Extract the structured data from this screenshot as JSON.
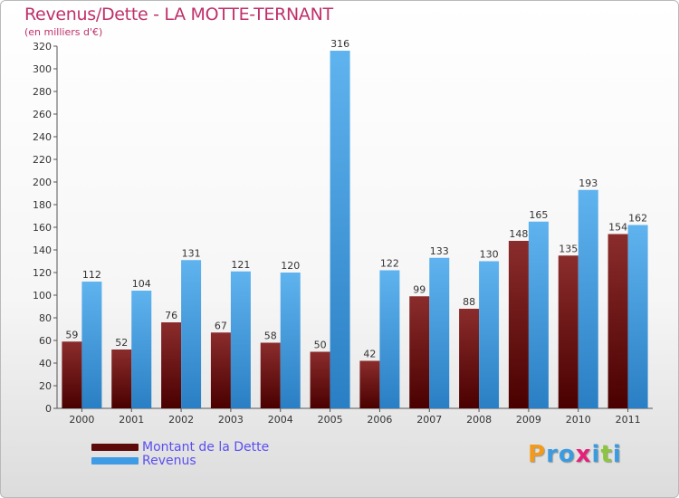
{
  "title": "Revenus/Dette - LA MOTTE-TERNANT",
  "subtitle": "(en milliers d'€)",
  "legend": {
    "dette": "Montant de la Dette",
    "revenus": "Revenus"
  },
  "logo": {
    "letters": [
      "P",
      "r",
      "o",
      "x",
      "i",
      "t",
      "i"
    ],
    "colors": [
      "#f29a1c",
      "#3a9be0",
      "#3a9be0",
      "#e6207a",
      "#3a9be0",
      "#8cc63f",
      "#3a9be0"
    ]
  },
  "colors": {
    "dette_top": "#8b2c2c",
    "dette_bottom": "#4a0000",
    "revenus_top": "#5fb3ee",
    "revenus_bottom": "#2a7fc4",
    "title": "#c0306a",
    "axis_text": "#333333"
  },
  "chart_data": {
    "type": "bar",
    "title": "Revenus/Dette - LA MOTTE-TERNANT",
    "ylabel": "(en milliers d'€)",
    "xlabel": "",
    "categories": [
      "2000",
      "2001",
      "2002",
      "2003",
      "2004",
      "2005",
      "2006",
      "2007",
      "2008",
      "2009",
      "2010",
      "2011"
    ],
    "series": [
      {
        "name": "Montant de la Dette",
        "values": [
          59,
          52,
          76,
          67,
          58,
          50,
          42,
          99,
          88,
          148,
          135,
          154
        ]
      },
      {
        "name": "Revenus",
        "values": [
          112,
          104,
          131,
          121,
          120,
          316,
          122,
          133,
          130,
          165,
          193,
          162
        ]
      }
    ],
    "ylim": [
      0,
      320
    ],
    "yticks": [
      0,
      20,
      40,
      60,
      80,
      100,
      120,
      140,
      160,
      180,
      200,
      220,
      240,
      260,
      280,
      300,
      320
    ],
    "grid": false,
    "legend_position": "bottom-left"
  }
}
